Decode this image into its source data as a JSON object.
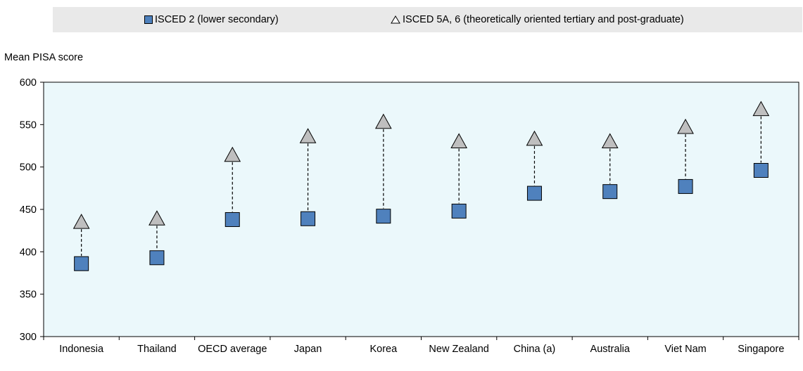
{
  "chart_data": {
    "type": "scatter",
    "ylabel": "Mean PISA score",
    "ylim": [
      300,
      600
    ],
    "yticks": [
      "600",
      "550",
      "500",
      "450",
      "400",
      "350",
      "300"
    ],
    "grid": false,
    "legend_position": "top",
    "categories": [
      "Indonesia",
      "Thailand",
      "OECD average",
      "Japan",
      "Korea",
      "New Zealand",
      "China (a)",
      "Australia",
      "Viet Nam",
      "Singapore"
    ],
    "series": [
      {
        "name": "ISCED 2 (lower secondary)",
        "marker": "square",
        "color": "#4f81bd",
        "values": [
          386,
          393,
          438,
          439,
          442,
          448,
          469,
          471,
          477,
          496
        ]
      },
      {
        "name": "ISCED 5A, 6 (theoretically oriented tertiary and post-graduate)",
        "marker": "triangle",
        "color": "#bfbfbf",
        "values": [
          435,
          439,
          514,
          536,
          553,
          530,
          533,
          530,
          547,
          568
        ]
      }
    ],
    "plot_background": "#ebf8fb",
    "connector": "dashed"
  }
}
